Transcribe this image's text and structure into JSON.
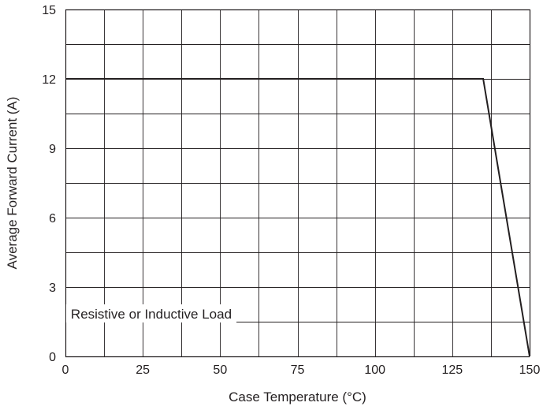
{
  "chart_data": {
    "type": "line",
    "title": "",
    "xlabel": "Case Temperature (°C)",
    "ylabel": "Average Forward Current (A)",
    "xlim": [
      0,
      150
    ],
    "ylim": [
      0,
      15
    ],
    "xticks": [
      0,
      25,
      50,
      75,
      100,
      125,
      150
    ],
    "yticks": [
      0,
      3,
      6,
      9,
      12,
      15
    ],
    "x_minor_step": 12.5,
    "y_minor_step": 1.5,
    "grid": true,
    "series": [
      {
        "name": "",
        "x": [
          0,
          135,
          150
        ],
        "y": [
          12,
          12,
          0
        ]
      }
    ],
    "annotations": [
      {
        "text": "Resistive or Inductive Load",
        "x": 1,
        "y": 1.5
      }
    ]
  },
  "colors": {
    "line": "#231f20",
    "grid": "#231f20",
    "text": "#231f20",
    "background": "#ffffff"
  }
}
